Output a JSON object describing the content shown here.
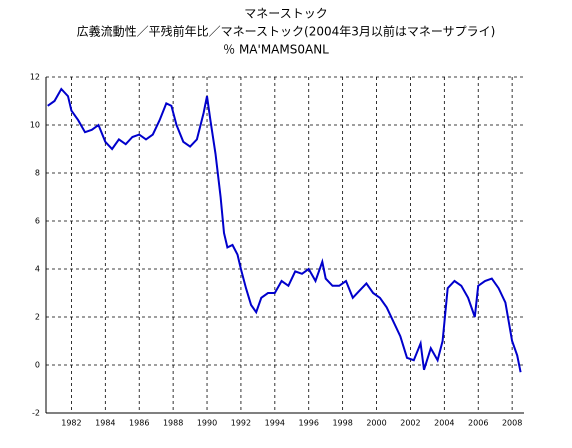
{
  "chart_data": {
    "type": "line",
    "title": "マネーストック",
    "subtitle": "広義流動性／平残前年比／マネーストック(2004年3月以前はマネーサプライ)",
    "unit_label": "％ MA'MAMS0ANL",
    "x": [
      1980.6,
      1981.0,
      1981.4,
      1981.8,
      1982.0,
      1982.4,
      1982.8,
      1983.2,
      1983.6,
      1984.0,
      1984.4,
      1984.8,
      1985.2,
      1985.6,
      1986.0,
      1986.4,
      1986.8,
      1987.2,
      1987.6,
      1987.9,
      1988.2,
      1988.6,
      1989.0,
      1989.4,
      1989.8,
      1990.0,
      1990.2,
      1990.5,
      1990.8,
      1991.0,
      1991.2,
      1991.5,
      1991.8,
      1992.0,
      1992.3,
      1992.6,
      1992.9,
      1993.2,
      1993.6,
      1994.0,
      1994.4,
      1994.8,
      1995.2,
      1995.6,
      1996.0,
      1996.4,
      1996.8,
      1997.0,
      1997.4,
      1997.8,
      1998.2,
      1998.6,
      1999.0,
      1999.4,
      1999.8,
      2000.2,
      2000.6,
      2001.0,
      2001.4,
      2001.8,
      2002.2,
      2002.6,
      2002.8,
      2003.2,
      2003.6,
      2003.9,
      2004.2,
      2004.6,
      2005.0,
      2005.4,
      2005.8,
      2006.0,
      2006.4,
      2006.8,
      2007.2,
      2007.6,
      2008.0,
      2008.3,
      2008.5
    ],
    "series": [
      {
        "color": "#0000cc",
        "values": [
          10.8,
          11.0,
          11.5,
          11.2,
          10.6,
          10.2,
          9.7,
          9.8,
          10.0,
          9.3,
          9.0,
          9.4,
          9.2,
          9.5,
          9.6,
          9.4,
          9.6,
          10.2,
          10.9,
          10.8,
          10.0,
          9.3,
          9.1,
          9.4,
          10.5,
          11.2,
          10.2,
          8.8,
          7.0,
          5.5,
          4.9,
          5.0,
          4.6,
          4.0,
          3.2,
          2.5,
          2.2,
          2.8,
          3.0,
          3.0,
          3.5,
          3.3,
          3.9,
          3.8,
          4.0,
          3.5,
          4.3,
          3.6,
          3.3,
          3.3,
          3.5,
          2.8,
          3.1,
          3.4,
          3.0,
          2.8,
          2.4,
          1.8,
          1.2,
          0.3,
          0.2,
          0.9,
          -0.2,
          0.7,
          0.2,
          1.0,
          3.2,
          3.5,
          3.3,
          2.8,
          2.0,
          3.3,
          3.5,
          3.6,
          3.2,
          2.6,
          1.0,
          0.4,
          -0.3
        ]
      }
    ],
    "xlim": [
      1980.5,
      2008.7
    ],
    "xticks": [
      1982,
      1984,
      1986,
      1988,
      1990,
      1992,
      1994,
      1996,
      1998,
      2000,
      2002,
      2004,
      2006,
      2008
    ],
    "ylim": [
      -2,
      12
    ],
    "yticks": [
      -2,
      0,
      2,
      4,
      6,
      8,
      10,
      12
    ],
    "grid": true
  }
}
